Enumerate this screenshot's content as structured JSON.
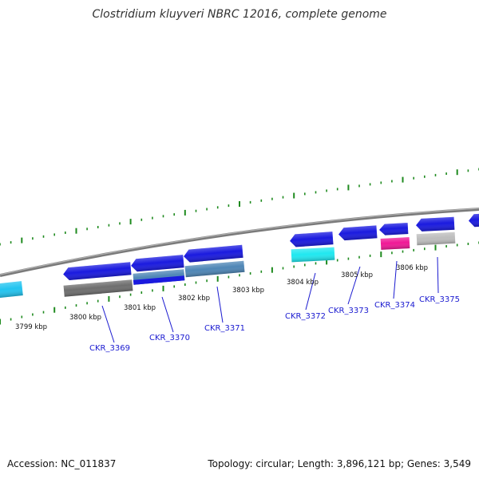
{
  "title": "Clostridium kluyveri NBRC 12016, complete genome",
  "footer": {
    "accession": "Accession: NC_011837",
    "summary": "Topology: circular; Length: 3,896,121 bp; Genes: 3,549"
  },
  "colors": {
    "backbone": "#7a7a7a",
    "ticks": "#1e8a1e",
    "label_text": "#111111",
    "gene_label_text": "#1a1ad0",
    "blue": "#1a1adf",
    "cyan": "#20e8f0",
    "light_blue": "#22c4f0",
    "steel_blue": "#4e86b6",
    "dark_gray": "#6e6e6e",
    "light_gray": "#bdbdbd",
    "magenta": "#f01896"
  },
  "kbp_labels": [
    "3799 kbp",
    "3800 kbp",
    "3801 kbp",
    "3802 kbp",
    "3803 kbp",
    "3804 kbp",
    "3805 kbp",
    "3806 kbp"
  ],
  "gene_labels": [
    "CKR_3369",
    "CKR_3370",
    "CKR_3371",
    "CKR_3372",
    "CKR_3373",
    "CKR_3374",
    "CKR_3375"
  ]
}
